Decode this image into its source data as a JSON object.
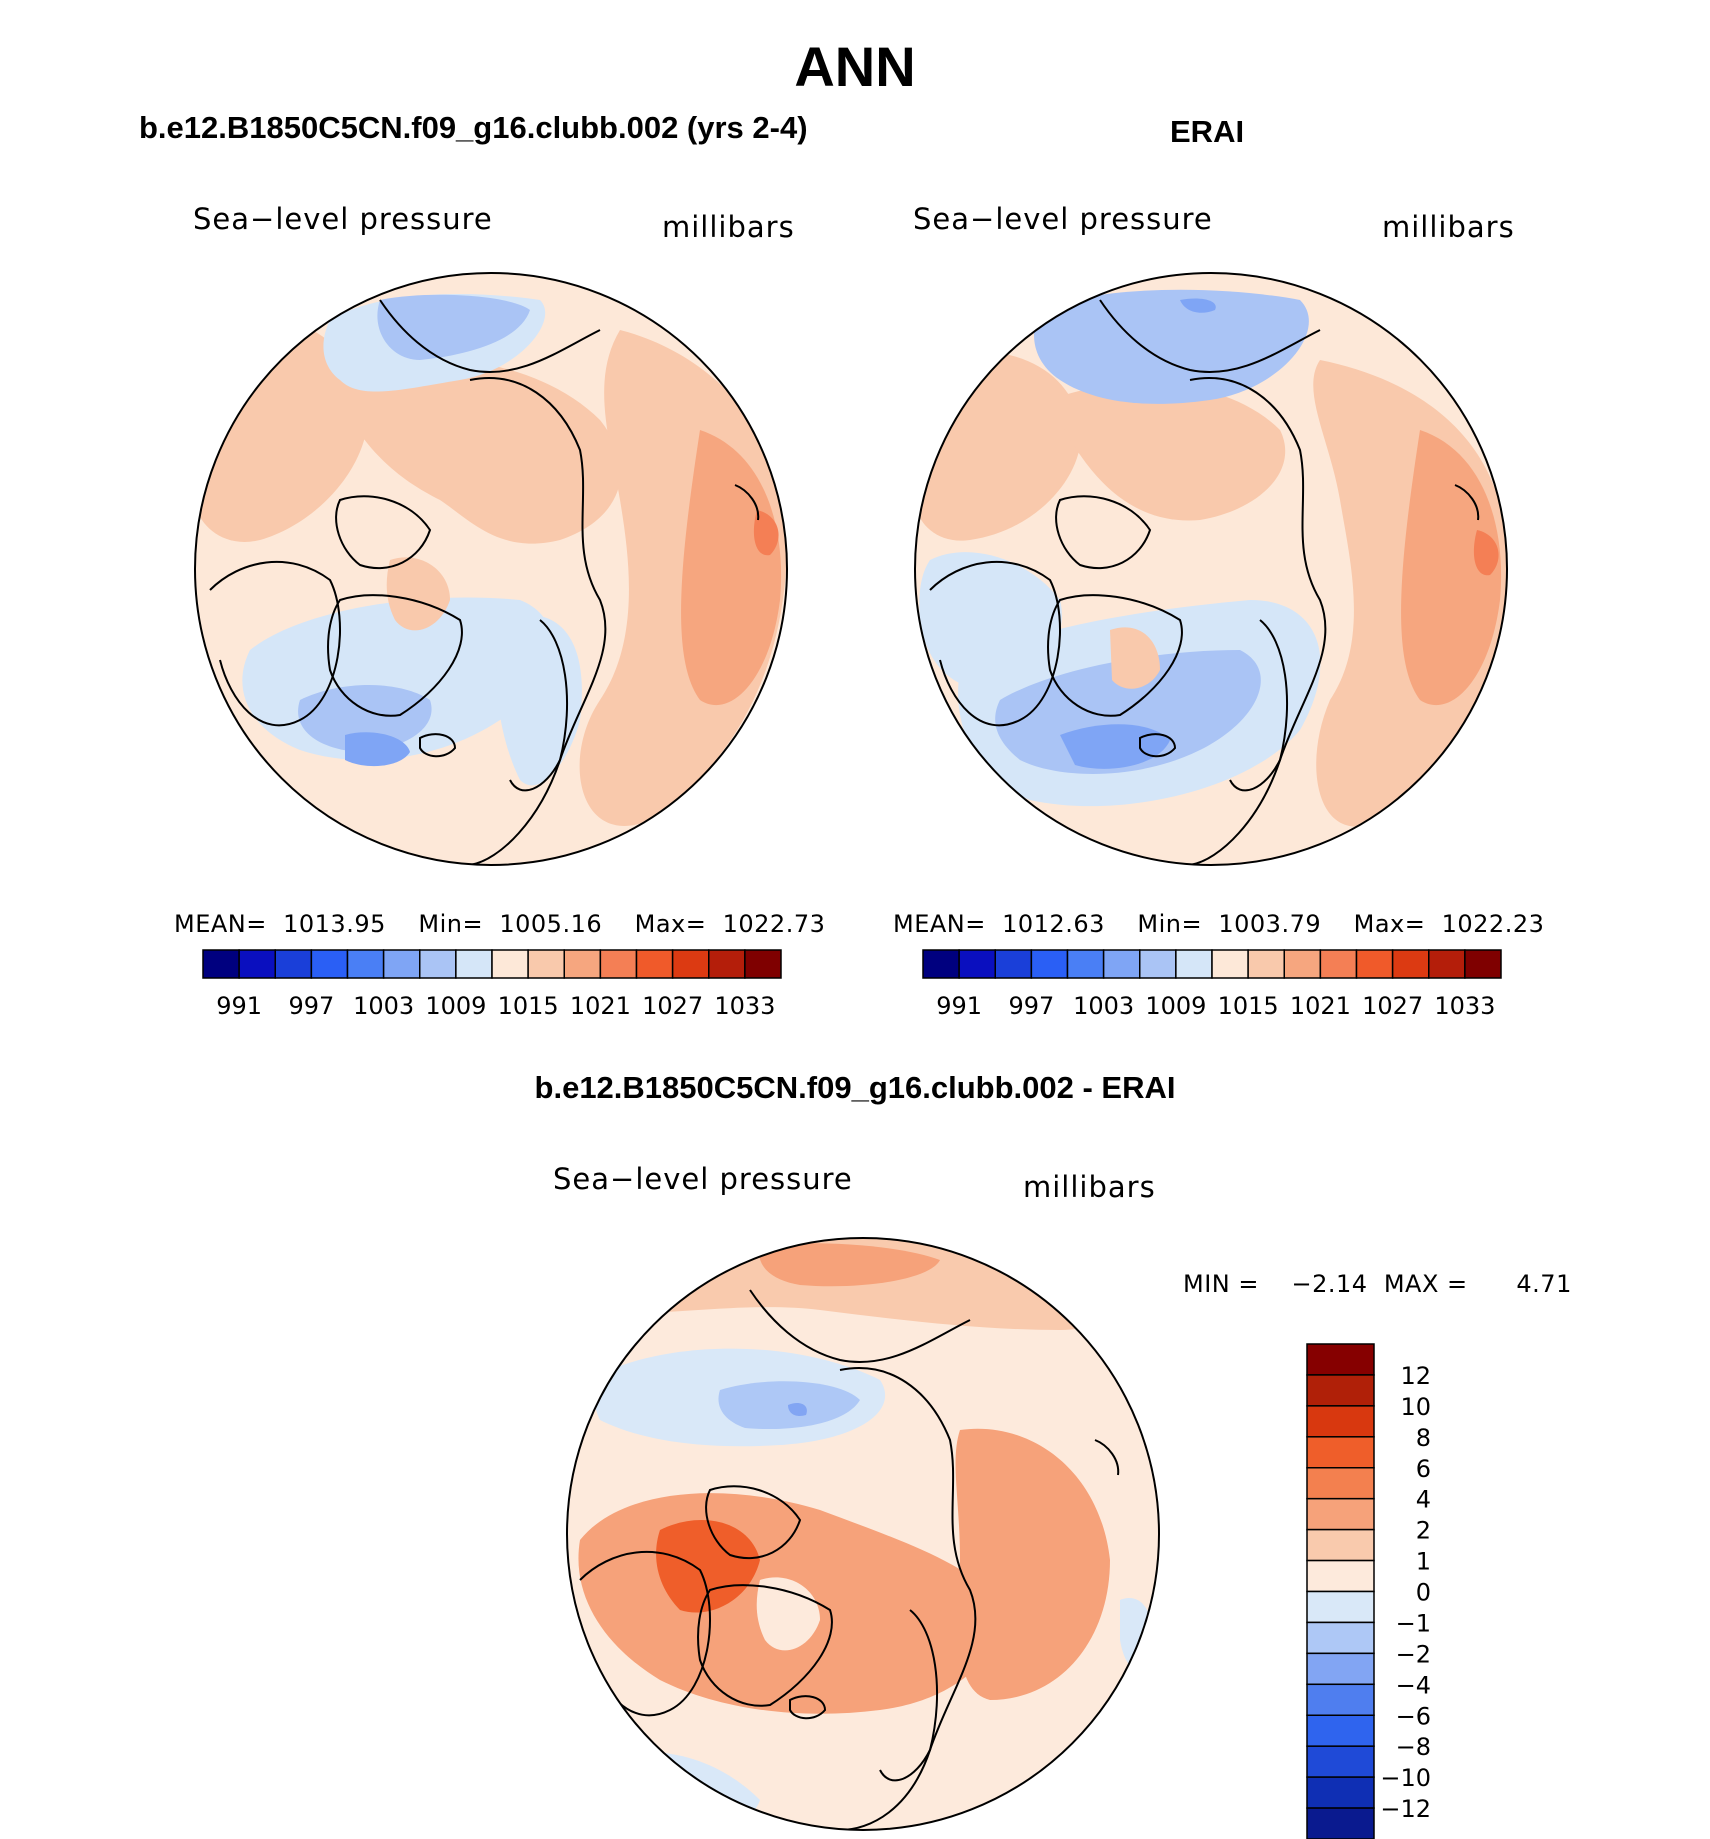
{
  "figure": {
    "season": "ANN",
    "variable_label": "Sea−level pressure",
    "units": "millibars",
    "colors": {
      "abs_palette": [
        "#00007f",
        "#0a0fbf",
        "#1a3fd9",
        "#2a5ff5",
        "#4a7ff5",
        "#7fa5f5",
        "#aac4f5",
        "#d5e6f8",
        "#fde8d8",
        "#f9c9ac",
        "#f6a67f",
        "#f47f55",
        "#f05a2a",
        "#dc3a12",
        "#b41e0a",
        "#7f0000"
      ],
      "diff_palette": [
        "#0a1a8f",
        "#0f2fb4",
        "#1f4ad7",
        "#2f64ee",
        "#4f7eef",
        "#82a5f3",
        "#aec8f6",
        "#d9e8f8",
        "#fdeadc",
        "#f9caad",
        "#f6a27a",
        "#f3804f",
        "#ef5e2a",
        "#d8380f",
        "#b02008",
        "#860000"
      ],
      "land_line": "#000000"
    },
    "panels": [
      {
        "name": "model",
        "title": "b.e12.B1850C5CN.f09_g16.clubb.002 (yrs 2-4)",
        "mean_label": "MEAN=",
        "mean": "1013.95",
        "min_label": "Min=",
        "min": "1005.16",
        "max_label": "Max=",
        "max": "1022.73",
        "colorbar_ticks": [
          "991",
          "997",
          "1003",
          "1009",
          "1015",
          "1021",
          "1027",
          "1033"
        ]
      },
      {
        "name": "obs",
        "title": "ERAI",
        "mean_label": "MEAN=",
        "mean": "1012.63",
        "min_label": "Min=",
        "min": "1003.79",
        "max_label": "Max=",
        "max": "1022.23",
        "colorbar_ticks": [
          "991",
          "997",
          "1003",
          "1009",
          "1015",
          "1021",
          "1027",
          "1033"
        ]
      }
    ],
    "difference": {
      "title": "b.e12.B1850C5CN.f09_g16.clubb.002 - ERAI",
      "min_label": "MIN =",
      "min": "−2.14",
      "max_label": "MAX =",
      "max": "4.71",
      "colorbar_ticks": [
        "12",
        "10",
        "8",
        "6",
        "4",
        "2",
        "1",
        "0",
        "−1",
        "−2",
        "−4",
        "−6",
        "−8",
        "−10",
        "−12"
      ]
    }
  },
  "chart_data": [
    {
      "type": "heatmap",
      "title": "b.e12.B1850C5CN.f09_g16.clubb.002 (yrs 2-4)",
      "subtitle": "Sea−level pressure",
      "units": "millibars",
      "projection": "north polar stereographic",
      "contour_levels": [
        988,
        991,
        994,
        997,
        1000,
        1003,
        1006,
        1009,
        1012,
        1015,
        1018,
        1021,
        1024,
        1027,
        1030,
        1033,
        1036
      ],
      "stats": {
        "mean": 1013.95,
        "min": 1005.16,
        "max": 1022.73
      }
    },
    {
      "type": "heatmap",
      "title": "ERAI",
      "subtitle": "Sea−level pressure",
      "units": "millibars",
      "projection": "north polar stereographic",
      "contour_levels": [
        988,
        991,
        994,
        997,
        1000,
        1003,
        1006,
        1009,
        1012,
        1015,
        1018,
        1021,
        1024,
        1027,
        1030,
        1033,
        1036
      ],
      "stats": {
        "mean": 1012.63,
        "min": 1003.79,
        "max": 1022.23
      }
    },
    {
      "type": "heatmap",
      "title": "b.e12.B1850C5CN.f09_g16.clubb.002 - ERAI",
      "subtitle": "Sea−level pressure",
      "units": "millibars",
      "projection": "north polar stereographic",
      "contour_levels": [
        -12,
        -10,
        -8,
        -6,
        -4,
        -2,
        -1,
        0,
        1,
        2,
        4,
        6,
        8,
        10,
        12
      ],
      "stats": {
        "min": -2.14,
        "max": 4.71
      }
    }
  ]
}
